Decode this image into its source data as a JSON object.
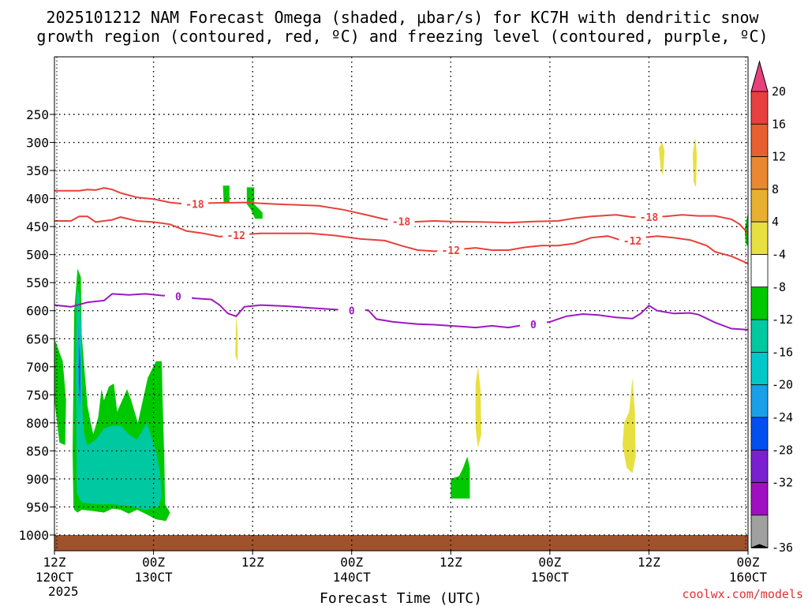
{
  "chart_data": {
    "type": "contour",
    "title_line1": "2025101212 NAM Forecast Omega (shaded, μbar/s) for KC7H with dendritic snow",
    "title_line2": "growth region (contoured, red, ºC) and freezing level (contoured, purple, ºC)",
    "xlabel": "Forecast Time (UTC)",
    "credit": "coolwx.com/models",
    "x_range_hours": [
      0,
      84
    ],
    "y_range_hpa": [
      1025,
      180
    ],
    "y_ticks": [
      250,
      300,
      350,
      400,
      450,
      500,
      550,
      600,
      650,
      700,
      750,
      800,
      850,
      900,
      950,
      1000
    ],
    "x_ticks": [
      {
        "hour": 0,
        "time": "12Z",
        "date": "120CT",
        "year": "2025"
      },
      {
        "hour": 12,
        "time": "00Z",
        "date": "130CT",
        "year": ""
      },
      {
        "hour": 24,
        "time": "12Z",
        "date": "",
        "year": ""
      },
      {
        "hour": 36,
        "time": "00Z",
        "date": "140CT",
        "year": ""
      },
      {
        "hour": 48,
        "time": "12Z",
        "date": "",
        "year": ""
      },
      {
        "hour": 60,
        "time": "00Z",
        "date": "150CT",
        "year": ""
      },
      {
        "hour": 72,
        "time": "12Z",
        "date": "",
        "year": ""
      },
      {
        "hour": 84,
        "time": "00Z",
        "date": "160CT",
        "year": ""
      }
    ],
    "contours": [
      {
        "label": "-18",
        "color": "#e8403a",
        "points": [
          [
            0,
            386
          ],
          [
            3,
            386
          ],
          [
            4,
            384
          ],
          [
            5,
            385
          ],
          [
            6,
            381
          ],
          [
            7,
            384
          ],
          [
            8,
            390
          ],
          [
            10,
            398
          ],
          [
            12,
            401
          ],
          [
            14,
            407
          ],
          [
            16,
            410
          ],
          [
            19,
            408
          ],
          [
            23,
            407
          ],
          [
            27,
            410
          ],
          [
            32,
            413
          ],
          [
            35,
            420
          ],
          [
            38,
            430
          ],
          [
            40,
            437
          ],
          [
            43,
            442
          ],
          [
            46,
            440
          ],
          [
            48,
            441
          ],
          [
            52,
            442
          ],
          [
            55,
            443
          ],
          [
            58,
            441
          ],
          [
            61,
            440
          ],
          [
            63,
            435
          ],
          [
            65,
            432
          ],
          [
            67,
            430
          ],
          [
            68,
            429
          ],
          [
            70,
            433
          ],
          [
            72,
            433
          ],
          [
            74,
            432
          ],
          [
            76,
            429
          ],
          [
            78,
            431
          ],
          [
            80,
            431
          ],
          [
            82,
            437
          ],
          [
            83,
            446
          ],
          [
            84,
            462
          ]
        ],
        "labels": [
          {
            "hour": 17,
            "hpa": 410
          },
          {
            "hour": 42,
            "hpa": 441
          },
          {
            "hour": 72,
            "hpa": 433
          }
        ]
      },
      {
        "label": "-12",
        "color": "#e8403a",
        "points": [
          [
            0,
            440
          ],
          [
            2,
            440
          ],
          [
            3,
            432
          ],
          [
            4,
            432
          ],
          [
            5,
            442
          ],
          [
            7,
            438
          ],
          [
            8,
            433
          ],
          [
            10,
            440
          ],
          [
            12,
            442
          ],
          [
            14,
            446
          ],
          [
            16,
            458
          ],
          [
            18,
            462
          ],
          [
            20,
            468
          ],
          [
            22,
            465
          ],
          [
            25,
            462
          ],
          [
            31,
            462
          ],
          [
            34,
            466
          ],
          [
            37,
            472
          ],
          [
            40,
            475
          ],
          [
            42,
            484
          ],
          [
            44,
            492
          ],
          [
            46,
            494
          ],
          [
            48,
            492
          ],
          [
            51,
            488
          ],
          [
            53,
            492
          ],
          [
            55,
            492
          ],
          [
            57,
            487
          ],
          [
            59,
            484
          ],
          [
            61,
            484
          ],
          [
            63,
            480
          ],
          [
            65,
            470
          ],
          [
            67,
            467
          ],
          [
            69,
            476
          ],
          [
            71,
            470
          ],
          [
            73,
            467
          ],
          [
            75,
            470
          ],
          [
            77,
            474
          ],
          [
            79,
            484
          ],
          [
            80,
            495
          ],
          [
            82,
            503
          ],
          [
            84,
            516
          ]
        ],
        "labels": [
          {
            "hour": 22,
            "hpa": 465
          },
          {
            "hour": 48,
            "hpa": 492
          },
          {
            "hour": 70,
            "hpa": 475
          }
        ]
      },
      {
        "label": "0",
        "color": "#9b19c0",
        "points": [
          [
            0,
            590
          ],
          [
            2,
            593
          ],
          [
            4,
            585
          ],
          [
            6,
            582
          ],
          [
            7,
            570
          ],
          [
            9,
            572
          ],
          [
            11,
            570
          ],
          [
            13,
            573
          ],
          [
            15,
            574
          ],
          [
            17,
            578
          ],
          [
            19,
            580
          ],
          [
            20,
            590
          ],
          [
            21,
            605
          ],
          [
            22,
            610
          ],
          [
            23,
            593
          ],
          [
            25,
            590
          ],
          [
            28,
            592
          ],
          [
            31,
            595
          ],
          [
            34,
            598
          ],
          [
            36,
            600
          ],
          [
            38,
            599
          ],
          [
            39,
            615
          ],
          [
            41,
            620
          ],
          [
            44,
            624
          ],
          [
            46,
            625
          ],
          [
            49,
            628
          ],
          [
            51,
            630
          ],
          [
            53,
            627
          ],
          [
            55,
            630
          ],
          [
            57,
            625
          ],
          [
            59,
            622
          ],
          [
            60,
            620
          ],
          [
            62,
            610
          ],
          [
            64,
            606
          ],
          [
            66,
            608
          ],
          [
            68,
            612
          ],
          [
            70,
            614
          ],
          [
            71,
            605
          ],
          [
            72,
            591
          ],
          [
            73,
            600
          ],
          [
            75,
            605
          ],
          [
            77,
            604
          ],
          [
            78,
            607
          ],
          [
            80,
            621
          ],
          [
            82,
            632
          ],
          [
            84,
            634
          ]
        ],
        "labels": [
          {
            "hour": 15,
            "hpa": 574
          },
          {
            "hour": 36,
            "hpa": 600
          },
          {
            "hour": 58,
            "hpa": 624
          }
        ]
      }
    ],
    "shaded_regions": [
      {
        "color": "#00c800",
        "points": [
          [
            0,
            650
          ],
          [
            1,
            690
          ],
          [
            1.4,
            760
          ],
          [
            1.3,
            840
          ],
          [
            0.6,
            835
          ],
          [
            0,
            760
          ]
        ]
      },
      {
        "color": "#00c800",
        "points": [
          [
            2.3,
            950
          ],
          [
            2.2,
            850
          ],
          [
            2.3,
            720
          ],
          [
            2.4,
            600
          ],
          [
            2.8,
            525
          ],
          [
            3.2,
            540
          ],
          [
            3.3,
            640
          ],
          [
            3.6,
            700
          ],
          [
            4.0,
            770
          ],
          [
            4.4,
            800
          ],
          [
            4.7,
            820
          ],
          [
            5.3,
            790
          ],
          [
            5.7,
            740
          ],
          [
            6.0,
            760
          ],
          [
            6.6,
            735
          ],
          [
            7.2,
            730
          ],
          [
            7.6,
            780
          ],
          [
            8.2,
            760
          ],
          [
            8.8,
            740
          ],
          [
            9.3,
            760
          ],
          [
            10.1,
            800
          ],
          [
            11.3,
            720
          ],
          [
            12.3,
            690
          ],
          [
            13.0,
            690
          ],
          [
            13.1,
            760
          ],
          [
            13.3,
            860
          ],
          [
            13.4,
            945
          ],
          [
            14.0,
            960
          ],
          [
            13.5,
            975
          ],
          [
            12.3,
            972
          ],
          [
            11.0,
            962
          ],
          [
            10.0,
            955
          ],
          [
            9.0,
            962
          ],
          [
            8.0,
            955
          ],
          [
            7.0,
            953
          ],
          [
            6.0,
            960
          ],
          [
            4.5,
            957
          ],
          [
            3.3,
            955
          ],
          [
            2.8,
            960
          ],
          [
            2.4,
            955
          ]
        ]
      },
      {
        "color": "#00c8a0",
        "points": [
          [
            2.7,
            560
          ],
          [
            3.0,
            570
          ],
          [
            3.3,
            640
          ],
          [
            3.4,
            780
          ],
          [
            3.6,
            820
          ],
          [
            4.0,
            840
          ],
          [
            5.0,
            830
          ],
          [
            6.0,
            810
          ],
          [
            7.0,
            805
          ],
          [
            8.0,
            805
          ],
          [
            9.0,
            820
          ],
          [
            10.0,
            830
          ],
          [
            11.2,
            800
          ],
          [
            12.3,
            850
          ],
          [
            12.8,
            890
          ],
          [
            13.0,
            930
          ],
          [
            12.6,
            950
          ],
          [
            11.0,
            955
          ],
          [
            9.0,
            948
          ],
          [
            7.0,
            945
          ],
          [
            5.0,
            945
          ],
          [
            3.3,
            942
          ],
          [
            2.7,
            925
          ],
          [
            2.6,
            700
          ]
        ]
      },
      {
        "color": "#1aa0e8",
        "points": [
          [
            2.9,
            620
          ],
          [
            3.1,
            660
          ],
          [
            3.2,
            760
          ],
          [
            3.0,
            770
          ],
          [
            2.8,
            700
          ]
        ]
      },
      {
        "color": "#0050f0",
        "points": [
          [
            3.0,
            660
          ],
          [
            3.15,
            690
          ],
          [
            3.1,
            760
          ],
          [
            2.95,
            730
          ]
        ]
      },
      {
        "color": "#00c800",
        "points": [
          [
            20.4,
            377
          ],
          [
            21.2,
            377
          ],
          [
            21.2,
            408
          ],
          [
            20.5,
            408
          ]
        ]
      },
      {
        "color": "#00c800",
        "points": [
          [
            23.3,
            380
          ],
          [
            24.2,
            380
          ],
          [
            24.2,
            410
          ],
          [
            25.2,
            425
          ],
          [
            25.2,
            436
          ],
          [
            24.3,
            436
          ],
          [
            23.8,
            420
          ],
          [
            23.3,
            410
          ]
        ]
      },
      {
        "color": "#00c800",
        "points": [
          [
            48.0,
            935
          ],
          [
            48.0,
            900
          ],
          [
            49.0,
            895
          ],
          [
            49.5,
            880
          ],
          [
            50.0,
            860
          ],
          [
            50.3,
            880
          ],
          [
            50.3,
            935
          ]
        ]
      },
      {
        "color": "#00c800",
        "points": [
          [
            83.6,
            455
          ],
          [
            83.9,
            430
          ],
          [
            84.0,
            430
          ],
          [
            84.0,
            485
          ],
          [
            83.7,
            480
          ]
        ]
      },
      {
        "color": "#e8e040",
        "points": [
          [
            22.0,
            610
          ],
          [
            22.2,
            640
          ],
          [
            22.2,
            690
          ],
          [
            21.9,
            680
          ]
        ]
      },
      {
        "color": "#e8e040",
        "points": [
          [
            51.0,
            730
          ],
          [
            51.3,
            700
          ],
          [
            51.6,
            740
          ],
          [
            51.7,
            820
          ],
          [
            51.3,
            845
          ],
          [
            51.0,
            810
          ]
        ]
      },
      {
        "color": "#e8e040",
        "points": [
          [
            68.8,
            840
          ],
          [
            69.0,
            800
          ],
          [
            69.6,
            780
          ],
          [
            70.0,
            720
          ],
          [
            70.3,
            780
          ],
          [
            70.4,
            860
          ],
          [
            70.0,
            890
          ],
          [
            69.3,
            880
          ]
        ]
      },
      {
        "color": "#e8e040",
        "points": [
          [
            73.2,
            310
          ],
          [
            73.6,
            300
          ],
          [
            73.9,
            315
          ],
          [
            73.7,
            360
          ],
          [
            73.4,
            345
          ]
        ]
      },
      {
        "color": "#e8e040",
        "points": [
          [
            77.3,
            320
          ],
          [
            77.6,
            290
          ],
          [
            77.8,
            320
          ],
          [
            77.7,
            380
          ],
          [
            77.4,
            370
          ]
        ]
      }
    ],
    "terrain": {
      "color": "#a0522d",
      "from_hpa": 1000,
      "to_hpa": 1020
    },
    "colorbar": {
      "levels": [
        "20",
        "16",
        "12",
        "8",
        "4",
        "-4",
        "-8",
        "-12",
        "-16",
        "-20",
        "-24",
        "-28",
        "-32",
        "-36"
      ],
      "colors": [
        "#e8407a",
        "#e84040",
        "#e86030",
        "#e88830",
        "#e8b030",
        "#e8e040",
        "#ffffff",
        "#00c800",
        "#00c8a0",
        "#00c8c8",
        "#1aa0e8",
        "#0050f0",
        "#7a20d0",
        "#a010c0",
        "#a0a0a0",
        "#000000"
      ]
    }
  }
}
